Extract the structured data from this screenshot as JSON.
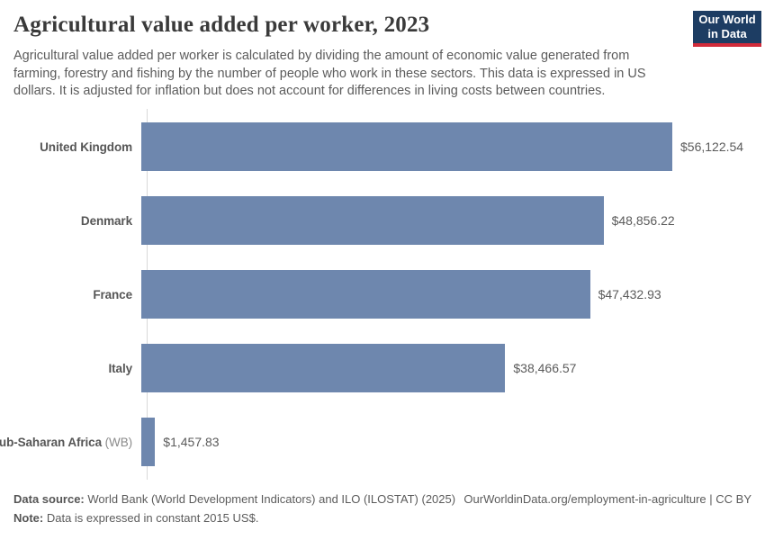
{
  "header": {
    "title": "Agricultural value added per worker, 2023",
    "subtitle": "Agricultural value added per worker is calculated by dividing the amount of economic value generated from farming, forestry and fishing by the number of people who work in these sectors. This data is expressed in US dollars. It is adjusted for inflation but does not account for differences in living costs between countries.",
    "logo": {
      "line1": "Our World",
      "line2": "in Data"
    }
  },
  "colors": {
    "bar": "#6e87ae",
    "axis": "#d9d9d9",
    "logo_bg": "#1d3d63",
    "logo_stripe": "#d12b3a"
  },
  "chart_data": {
    "type": "bar",
    "orientation": "horizontal",
    "title": "Agricultural value added per worker, 2023",
    "categories": [
      "United Kingdom",
      "Denmark",
      "France",
      "Italy",
      "Sub-Saharan Africa (WB)"
    ],
    "values": [
      56122.54,
      48856.22,
      47432.93,
      38466.57,
      1457.83
    ],
    "xlim": [
      0,
      56122.54
    ],
    "grid": "off",
    "legend": "none",
    "unit": "constant 2015 US$",
    "entities": [
      {
        "name": "United Kingdom",
        "suffix": "",
        "value": 56122.54,
        "value_label": "$56,122.54"
      },
      {
        "name": "Denmark",
        "suffix": "",
        "value": 48856.22,
        "value_label": "$48,856.22"
      },
      {
        "name": "France",
        "suffix": "",
        "value": 47432.93,
        "value_label": "$47,432.93"
      },
      {
        "name": "Italy",
        "suffix": "",
        "value": 38466.57,
        "value_label": "$38,466.57"
      },
      {
        "name": "Sub-Saharan Africa",
        "suffix": "(WB)",
        "value": 1457.83,
        "value_label": "$1,457.83"
      }
    ]
  },
  "footer": {
    "datasource_label": "Data source:",
    "datasource_text": "World Bank (World Development Indicators) and ILO (ILOSTAT) (2025)",
    "link": "OurWorldinData.org/employment-in-agriculture | CC BY",
    "note_label": "Note:",
    "note_text": "Data is expressed in constant 2015 US$."
  }
}
